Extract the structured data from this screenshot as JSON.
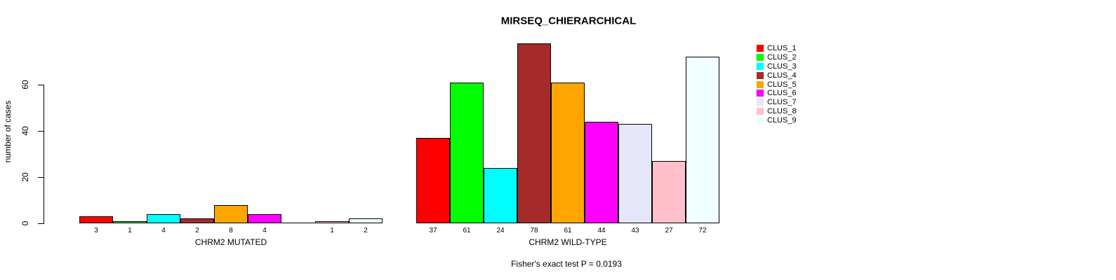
{
  "chart_data": {
    "type": "bar",
    "title": "MIRSEQ_CHIERARCHICAL",
    "ylabel": "number of cases",
    "xlabel": "",
    "ylim": [
      0,
      60
    ],
    "y_ticks": [
      0,
      20,
      40,
      60
    ],
    "grid": false,
    "legend_position": "top-right-inside",
    "clusters": [
      {
        "name": "CLUS_1",
        "color": "#FF0000"
      },
      {
        "name": "CLUS_2",
        "color": "#00FF00"
      },
      {
        "name": "CLUS_3",
        "color": "#00FFFF"
      },
      {
        "name": "CLUS_4",
        "color": "#A52A2A"
      },
      {
        "name": "CLUS_5",
        "color": "#FFA500"
      },
      {
        "name": "CLUS_6",
        "color": "#FF00FF"
      },
      {
        "name": "CLUS_7",
        "color": "#E6E6FA"
      },
      {
        "name": "CLUS_8",
        "color": "#FFC0CB"
      },
      {
        "name": "CLUS_9",
        "color": "#F0FFFF"
      }
    ],
    "groups": [
      {
        "label": "CHRM2 MUTATED",
        "values": [
          3,
          1,
          4,
          2,
          8,
          4,
          0,
          1,
          2
        ],
        "value_labels": [
          "3",
          "1",
          "4",
          "2",
          "8",
          "4",
          "",
          "1",
          "2"
        ]
      },
      {
        "label": "CHRM2 WILD-TYPE",
        "values": [
          37,
          61,
          24,
          78,
          61,
          44,
          43,
          27,
          72
        ],
        "value_labels": [
          "37",
          "61",
          "24",
          "78",
          "61",
          "44",
          "43",
          "27",
          "72"
        ]
      }
    ],
    "annotation": "Fisher's exact test P = 0.0193"
  }
}
